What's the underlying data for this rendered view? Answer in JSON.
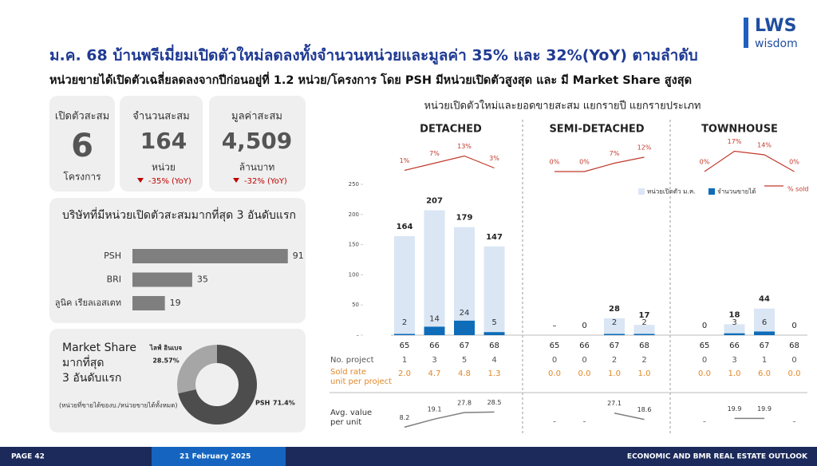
{
  "header": {
    "title": "ม.ค. 68 บ้านพรีเมี่ยมเปิดตัวใหม่ลดลงทั้งจำนวนหน่วยและมูลค่า 35% และ 32%(YoY) ตามลำดับ",
    "subtitle": "หน่วยขายได้เปิดตัวเฉลี่ยลดลงจากปีก่อนอยู่ที่ 1.2 หน่วย/โครงการ โดย PSH มีหน่วยเปิดตัวสูงสุด และ มี Market Share สูงสุด",
    "logo": "LWS",
    "logo_sub": "wisdom"
  },
  "kpis": [
    {
      "label": "เปิดตัวสะสม",
      "value": "6",
      "unit": "โครงการ"
    },
    {
      "label": "จำนวนสะสม",
      "value": "164",
      "unit": "หน่วย",
      "change": "-35% (YoY)"
    },
    {
      "label": "มูลค่าสะสม",
      "value": "4,509",
      "unit": "ล้านบาท",
      "change": "-32% (YoY)"
    }
  ],
  "chart_data": [
    {
      "type": "hbar",
      "title": "บริษัทที่มีหน่วยเปิดตัวสะสมมากที่สุด 3 อันดับแรก",
      "categories": [
        "PSH",
        "BRI",
        "ลูนิค เรียลเอสเตท"
      ],
      "values": [
        91,
        35,
        19
      ],
      "color": "#7f7f7f",
      "xlim": [
        0,
        100
      ]
    },
    {
      "type": "donut",
      "title": "Market Share มากที่สุด 3 อันดับแรก",
      "note": "(หน่วยที่ขายได้ของบ./หน่วยขายได้ทั้งหมด)",
      "categories": [
        "ไลฟ์ อินเบจ",
        "PSH"
      ],
      "values": [
        28.57,
        71.4
      ],
      "value_labels": [
        "28.57%",
        "71.4%"
      ],
      "colors": [
        "#a6a6a6",
        "#4d4d4d"
      ]
    },
    {
      "type": "grouped-bar",
      "title": "หน่วยเปิดตัวใหม่และยอดขายสะสม แยกรายปี แยกรายประเภท",
      "groups": [
        "DETACHED",
        "SEMI-DETACHED",
        "TOWNHOUSE"
      ],
      "categories": [
        "65",
        "66",
        "67",
        "68",
        "65",
        "66",
        "67",
        "68",
        "65",
        "66",
        "67",
        "68"
      ],
      "ylim": [
        0,
        250
      ],
      "yticks": [
        {
          "value": 0,
          "label": "–"
        },
        50,
        100,
        150,
        200,
        250
      ],
      "y2lim": [
        0,
        20
      ],
      "y3lim": [
        0,
        30
      ],
      "series": [
        {
          "name": "หน่วยเปิดตัว ม.ค.",
          "color": "#dae6f4",
          "values": [
            164,
            207,
            179,
            147,
            null,
            0,
            28,
            17,
            0,
            18,
            44,
            0
          ],
          "value_labels": [
            "164",
            "207",
            "179",
            "147",
            "–",
            "0",
            "28",
            "17",
            "0",
            "18",
            "44",
            "0"
          ]
        },
        {
          "name": "จำนวนขายได้",
          "color": "#0e6cb8",
          "values": [
            2,
            14,
            24,
            5,
            null,
            null,
            2,
            2,
            null,
            3,
            6,
            null
          ]
        },
        {
          "name": "% sold",
          "color": "#c0392b",
          "axis": "y2",
          "values": [
            1,
            7,
            13,
            3,
            0,
            0,
            7,
            12,
            0,
            17,
            14,
            0
          ],
          "value_labels": [
            "1%",
            "7%",
            "13%",
            "3%",
            "0%",
            "0%",
            "7%",
            "12%",
            "0%",
            "17%",
            "14%",
            "0%"
          ]
        }
      ],
      "rows": [
        {
          "label": "No. project",
          "values": [
            1,
            3,
            5,
            4,
            0,
            0,
            2,
            2,
            0,
            3,
            1,
            0
          ]
        },
        {
          "label": "Sold rate",
          "sublabel": "unit per project",
          "values": [
            "2.0",
            "4.7",
            "4.8",
            "1.3",
            "0.0",
            "0.0",
            "1.0",
            "1.0",
            "0.0",
            "1.0",
            "6.0",
            "0.0"
          ]
        }
      ],
      "avg": {
        "label": "Avg. value",
        "sublabel": "per unit",
        "color": "#7f7f7f",
        "values": [
          8.2,
          19.1,
          27.8,
          28.5,
          null,
          null,
          27.1,
          18.6,
          null,
          19.9,
          19.9,
          null
        ],
        "value_labels": [
          "8.2",
          "19.1",
          "27.8",
          "28.5",
          "–",
          "–",
          "27.1",
          "18.6",
          "–",
          "19.9",
          "19.9",
          "–"
        ]
      }
    }
  ],
  "footer": {
    "page": "PAGE 42",
    "date": "21 February 2025",
    "report": "ECONOMIC AND BMR REAL ESTATE OUTLOOK"
  }
}
